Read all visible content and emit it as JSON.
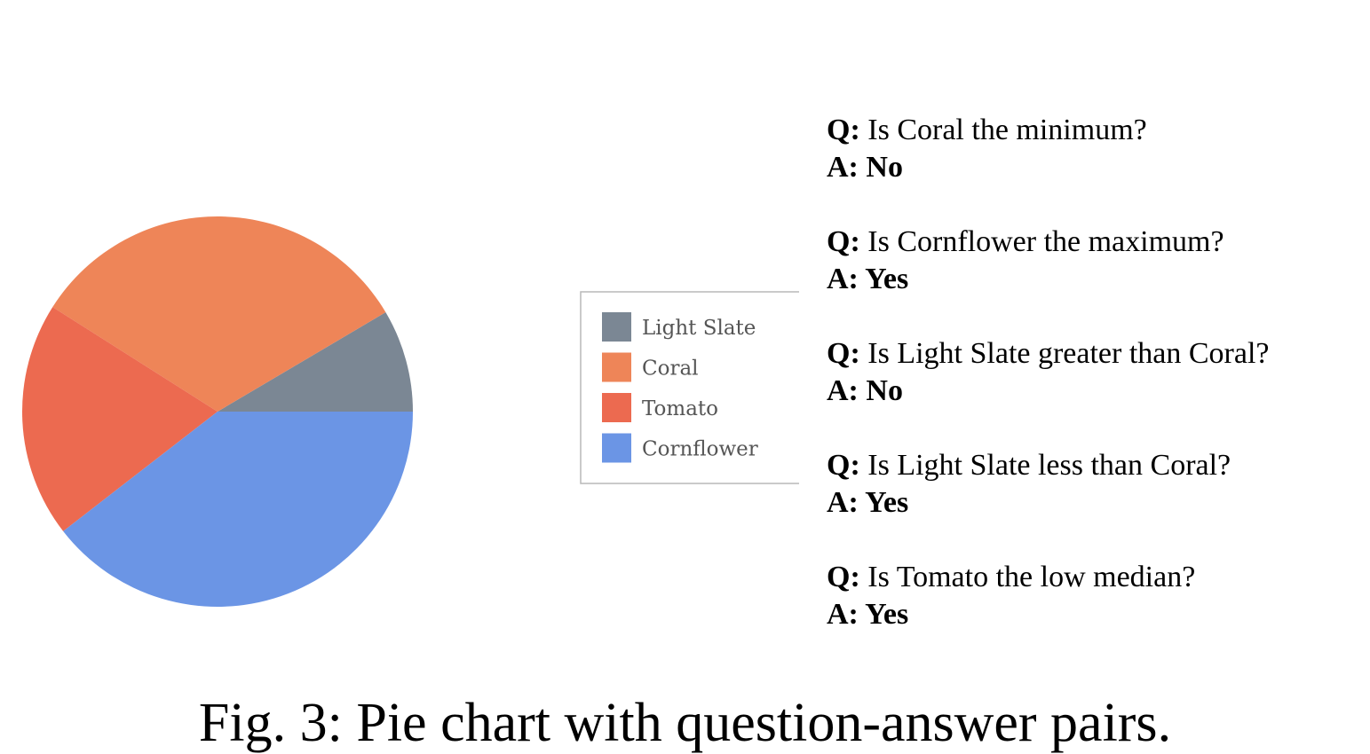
{
  "chart_data": {
    "type": "pie",
    "categories": [
      "Light Slate",
      "Coral",
      "Tomato",
      "Cornflower"
    ],
    "values": [
      8.5,
      32.5,
      19.5,
      39.5
    ],
    "colors": [
      "#7b8794",
      "#ee8558",
      "#ec6a50",
      "#6b95e5"
    ],
    "start_angle_deg": 0,
    "direction": "counterclockwise",
    "legend": [
      "Light Slate",
      "Coral",
      "Tomato",
      "Cornflower"
    ],
    "legend_placement": "right"
  },
  "qa": [
    {
      "q_prefix": "Q:",
      "question": "Is Coral the minimum?",
      "a_prefix": "A:",
      "answer": "No"
    },
    {
      "q_prefix": "Q:",
      "question": "Is Cornflower the maximum?",
      "a_prefix": "A:",
      "answer": "Yes"
    },
    {
      "q_prefix": "Q:",
      "question": "Is Light Slate greater than Coral?",
      "a_prefix": "A:",
      "answer": "No"
    },
    {
      "q_prefix": "Q:",
      "question": "Is Light Slate less than Coral?",
      "a_prefix": "A:",
      "answer": "Yes"
    },
    {
      "q_prefix": "Q:",
      "question": "Is Tomato the low median?",
      "a_prefix": "A:",
      "answer": "Yes"
    }
  ],
  "caption": "Fig. 3: Pie chart with question-answer pairs."
}
